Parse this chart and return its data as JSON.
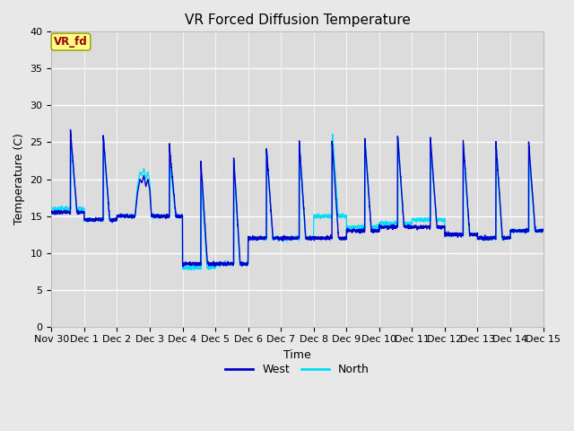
{
  "title": "VR Forced Diffusion Temperature",
  "xlabel": "Time",
  "ylabel": "Temperature (C)",
  "ylim": [
    0,
    40
  ],
  "yticks": [
    0,
    5,
    10,
    15,
    20,
    25,
    30,
    35,
    40
  ],
  "bg_color": "#dcdcdc",
  "fig_color": "#e8e8e8",
  "west_color": "#0000CC",
  "north_color": "#00DDFF",
  "annotation_text": "VR_fd",
  "annotation_bg": "#FFFF88",
  "annotation_fg": "#990000",
  "legend_west": "West",
  "legend_north": "North",
  "xtick_labels": [
    "Nov 30",
    "Dec 1",
    "Dec 2",
    "Dec 3",
    "Dec 4",
    "Dec 5",
    "Dec 6",
    "Dec 7",
    "Dec 8",
    "Dec 9",
    "Dec 10",
    "Dec 11",
    "Dec 12",
    "Dec 13",
    "Dec 14",
    "Dec 15"
  ],
  "title_fontsize": 11,
  "axis_label_fontsize": 9,
  "tick_fontsize": 8
}
